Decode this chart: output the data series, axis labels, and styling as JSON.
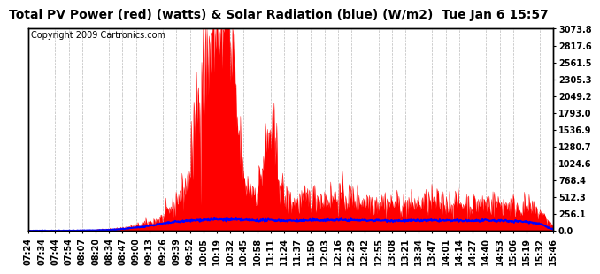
{
  "title": "Total PV Power (red) (watts) & Solar Radiation (blue) (W/m2)  Tue Jan 6 15:57",
  "copyright": "Copyright 2009 Cartronics.com",
  "bg_color": "#FFFFFF",
  "plot_bg_color": "#FFFFFF",
  "grid_color": "#BBBBBB",
  "red_color": "#FF0000",
  "blue_color": "#0000FF",
  "ymin": 0.0,
  "ymax": 3073.8,
  "yticks": [
    0.0,
    256.1,
    512.3,
    768.4,
    1024.6,
    1280.7,
    1536.9,
    1793.0,
    2049.2,
    2305.3,
    2561.5,
    2817.6,
    3073.8
  ],
  "xtick_labels": [
    "07:24",
    "07:34",
    "07:44",
    "07:54",
    "08:07",
    "08:20",
    "08:34",
    "08:47",
    "09:00",
    "09:13",
    "09:26",
    "09:39",
    "09:52",
    "10:05",
    "10:19",
    "10:32",
    "10:45",
    "10:58",
    "11:11",
    "11:24",
    "11:37",
    "11:50",
    "12:03",
    "12:16",
    "12:29",
    "12:42",
    "12:55",
    "13:08",
    "13:21",
    "13:34",
    "13:47",
    "14:01",
    "14:14",
    "14:27",
    "14:40",
    "14:53",
    "15:06",
    "15:19",
    "15:32",
    "15:46"
  ],
  "title_fontsize": 10,
  "tick_fontsize": 7,
  "copyright_fontsize": 7
}
